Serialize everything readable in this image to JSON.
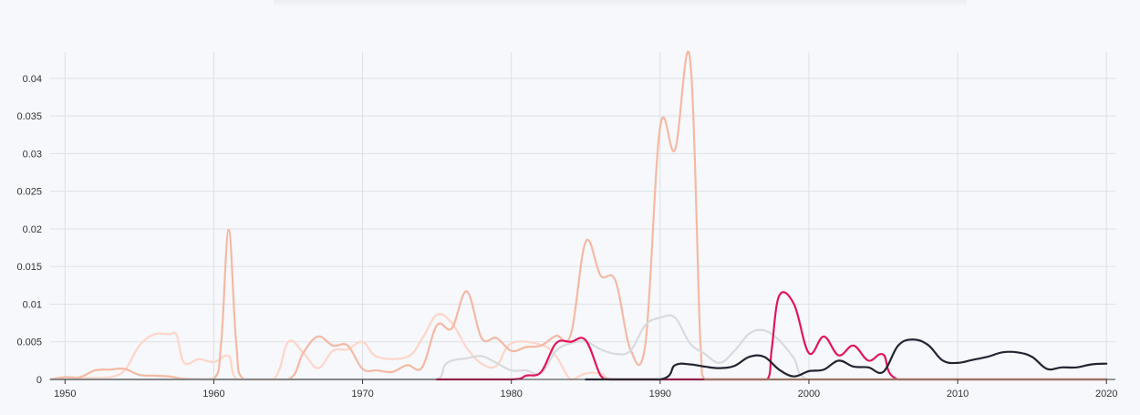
{
  "chart_data": {
    "type": "line",
    "title": "",
    "xlabel": "",
    "ylabel": "",
    "xlim": [
      1949,
      2020.6
    ],
    "ylim": [
      0,
      0.0435
    ],
    "x_ticks": [
      1950,
      1960,
      1970,
      1980,
      1990,
      2000,
      2010,
      2020
    ],
    "x_tick_labels": [
      "1950",
      "1960",
      "1970",
      "1980",
      "1990",
      "2000",
      "2010",
      "2020"
    ],
    "y_ticks": [
      0,
      0.005,
      0.01,
      0.015,
      0.02,
      0.025,
      0.03,
      0.035,
      0.04
    ],
    "y_tick_labels": [
      "0",
      "0.005",
      "0.01",
      "0.015",
      "0.02",
      "0.025",
      "0.03",
      "0.035",
      "0.04"
    ],
    "grid": true,
    "legend": "none",
    "series": [
      {
        "color": "#ffd5c8",
        "points": [
          [
            1949,
            0
          ],
          [
            1950,
            0.0002
          ],
          [
            1952,
            0.0002
          ],
          [
            1953,
            0.0003
          ],
          [
            1954,
            0.0012
          ],
          [
            1955,
            0.0045
          ],
          [
            1956,
            0.006
          ],
          [
            1957,
            0.006
          ],
          [
            1957.5,
            0.0059
          ],
          [
            1958,
            0.0022
          ],
          [
            1959,
            0.0027
          ],
          [
            1960,
            0.0023
          ],
          [
            1961,
            0.0031
          ],
          [
            1961.6,
            0
          ],
          [
            1964,
            0
          ],
          [
            1965,
            0.005
          ],
          [
            1966,
            0.0036
          ],
          [
            1967,
            0.0015
          ],
          [
            1968,
            0.0038
          ],
          [
            1969,
            0.004
          ],
          [
            1970,
            0.005
          ],
          [
            1971,
            0.003
          ],
          [
            1973,
            0.003
          ],
          [
            1974,
            0.0054
          ],
          [
            1975,
            0.0086
          ],
          [
            1976,
            0.0075
          ],
          [
            1977,
            0.0042
          ],
          [
            1978,
            0.0021
          ],
          [
            1979,
            0.0018
          ],
          [
            1980,
            0.0048
          ],
          [
            1982,
            0.0046
          ],
          [
            1983,
            0.0031
          ],
          [
            1984,
            0
          ],
          [
            1985,
            0.0008
          ],
          [
            1986,
            0.0008
          ],
          [
            1987,
            0
          ],
          [
            2020,
            0
          ]
        ]
      },
      {
        "color": "#f4b9a3",
        "points": [
          [
            1949,
            0
          ],
          [
            1950,
            0.0003
          ],
          [
            1951,
            0.0003
          ],
          [
            1952,
            0.0012
          ],
          [
            1953,
            0.0013
          ],
          [
            1954,
            0.0014
          ],
          [
            1955,
            0.0006
          ],
          [
            1956,
            0.0005
          ],
          [
            1957,
            0.0004
          ],
          [
            1958,
            0.0001
          ],
          [
            1960,
            0.0001
          ],
          [
            1960.5,
            0.005
          ],
          [
            1961,
            0.0199
          ],
          [
            1961.5,
            0.005
          ],
          [
            1962,
            0
          ],
          [
            1965,
            0
          ],
          [
            1966,
            0.0035
          ],
          [
            1967,
            0.0057
          ],
          [
            1968,
            0.0045
          ],
          [
            1969,
            0.0045
          ],
          [
            1970,
            0.0014
          ],
          [
            1971,
            0.0012
          ],
          [
            1972,
            0.001
          ],
          [
            1973,
            0.0019
          ],
          [
            1974,
            0.0016
          ],
          [
            1975,
            0.0072
          ],
          [
            1976,
            0.0068
          ],
          [
            1977,
            0.0117
          ],
          [
            1978,
            0.0055
          ],
          [
            1979,
            0.0055
          ],
          [
            1980,
            0.0038
          ],
          [
            1981,
            0.0043
          ],
          [
            1982,
            0.0045
          ],
          [
            1983,
            0.0058
          ],
          [
            1984,
            0.006
          ],
          [
            1985,
            0.0183
          ],
          [
            1986,
            0.0138
          ],
          [
            1987,
            0.0131
          ],
          [
            1988,
            0.004
          ],
          [
            1989,
            0.0045
          ],
          [
            1990,
            0.0335
          ],
          [
            1991,
            0.0305
          ],
          [
            1992,
            0.0427
          ],
          [
            1992.7,
            0.005
          ],
          [
            1993,
            0
          ],
          [
            2020,
            0
          ]
        ]
      },
      {
        "color": "#d9dadd",
        "points": [
          [
            1949,
            0
          ],
          [
            1975,
            0
          ],
          [
            1975.5,
            0.0018
          ],
          [
            1976,
            0.0025
          ],
          [
            1977,
            0.0028
          ],
          [
            1978,
            0.0031
          ],
          [
            1979,
            0.0022
          ],
          [
            1980,
            0.0012
          ],
          [
            1981,
            0.0012
          ],
          [
            1982,
            0.0008
          ],
          [
            1983,
            0.0038
          ],
          [
            1984,
            0.0048
          ],
          [
            1985,
            0.005
          ],
          [
            1986,
            0.004
          ],
          [
            1987,
            0.0034
          ],
          [
            1988,
            0.0038
          ],
          [
            1989,
            0.0072
          ],
          [
            1990,
            0.0082
          ],
          [
            1991,
            0.0082
          ],
          [
            1992,
            0.0048
          ],
          [
            1993,
            0.0034
          ],
          [
            1994,
            0.0022
          ],
          [
            1995,
            0.0038
          ],
          [
            1996,
            0.0061
          ],
          [
            1997,
            0.0065
          ],
          [
            1998,
            0.0052
          ],
          [
            1999,
            0.0028
          ],
          [
            2000,
            0
          ],
          [
            2020,
            0
          ]
        ]
      },
      {
        "color": "#e0165c",
        "points": [
          [
            1975,
            0
          ],
          [
            1980,
            0
          ],
          [
            1981,
            0.0005
          ],
          [
            1982,
            0.001
          ],
          [
            1983,
            0.0048
          ],
          [
            1984,
            0.005
          ],
          [
            1985,
            0.0052
          ],
          [
            1986,
            0.0005
          ],
          [
            1986.6,
            0
          ],
          [
            1997.2,
            0
          ],
          [
            1997.5,
            0.004
          ],
          [
            1998,
            0.0111
          ],
          [
            1999,
            0.01
          ],
          [
            2000,
            0.0035
          ],
          [
            2001,
            0.0057
          ],
          [
            2002,
            0.0032
          ],
          [
            2003,
            0.0045
          ],
          [
            2004,
            0.0025
          ],
          [
            2005,
            0.0033
          ],
          [
            2006,
            0
          ],
          [
            2020,
            0
          ]
        ]
      },
      {
        "color": "#212532",
        "points": [
          [
            1985,
            0
          ],
          [
            1990,
            0
          ],
          [
            1991,
            0.0019
          ],
          [
            1992,
            0.002
          ],
          [
            1993,
            0.0017
          ],
          [
            1994,
            0.0015
          ],
          [
            1995,
            0.0018
          ],
          [
            1996,
            0.003
          ],
          [
            1997,
            0.003
          ],
          [
            1998,
            0.0013
          ],
          [
            1999,
            0.0004
          ],
          [
            2000,
            0.0011
          ],
          [
            2001,
            0.0013
          ],
          [
            2002,
            0.0025
          ],
          [
            2003,
            0.0017
          ],
          [
            2004,
            0.0016
          ],
          [
            2005,
            0.001
          ],
          [
            2006,
            0.0045
          ],
          [
            2007,
            0.0053
          ],
          [
            2008,
            0.0046
          ],
          [
            2009,
            0.0025
          ],
          [
            2010,
            0.0022
          ],
          [
            2011,
            0.0026
          ],
          [
            2012,
            0.003
          ],
          [
            2013,
            0.0036
          ],
          [
            2014,
            0.0036
          ],
          [
            2015,
            0.003
          ],
          [
            2016,
            0.0014
          ],
          [
            2017,
            0.0016
          ],
          [
            2018,
            0.0016
          ],
          [
            2019,
            0.002
          ],
          [
            2020,
            0.0021
          ]
        ]
      },
      {
        "color": "#f4b9a3",
        "points": [
          [
            1993,
            0
          ],
          [
            2020,
            0
          ]
        ]
      }
    ],
    "colors": {
      "background": "#f6f8fb",
      "grid": "#dde1e6",
      "axis": "#333333"
    }
  }
}
